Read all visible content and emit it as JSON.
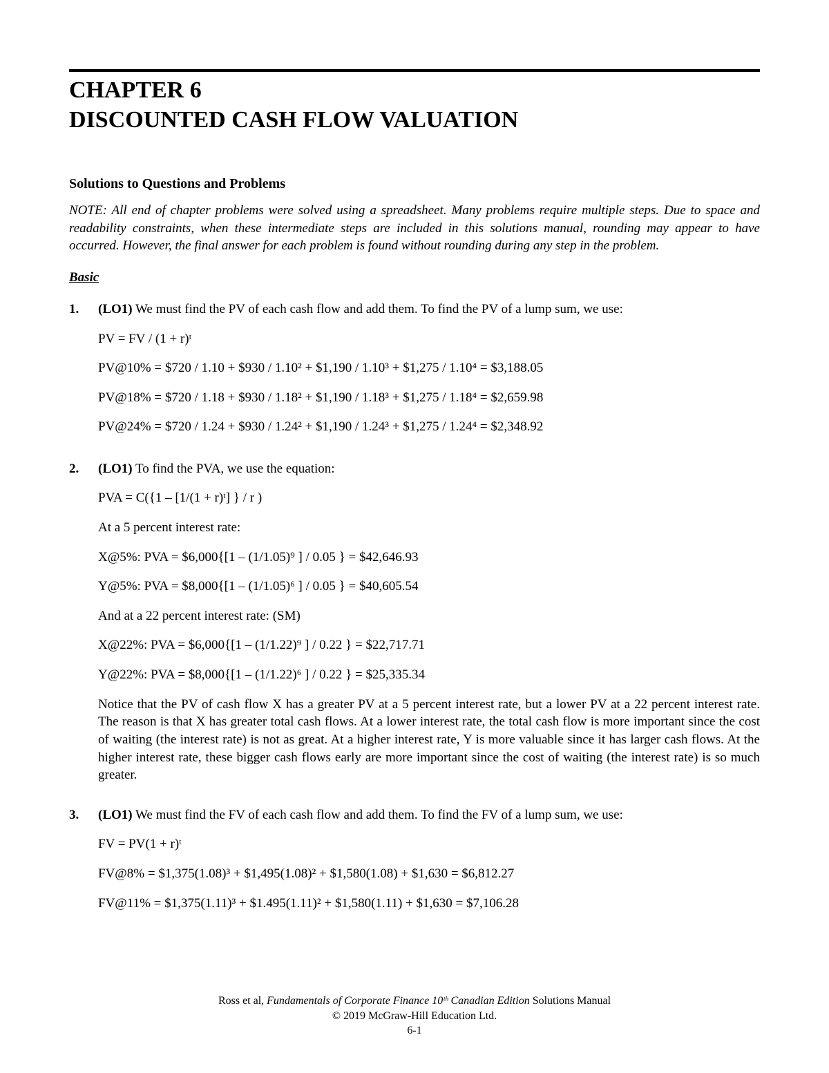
{
  "chapter": {
    "label": "CHAPTER 6",
    "title": "DISCOUNTED CASH FLOW VALUATION"
  },
  "section_heading": "Solutions to Questions and Problems",
  "note": "NOTE: All end of chapter problems were solved using a spreadsheet. Many problems require multiple steps. Due to space and readability constraints, when these intermediate steps are included in this solutions manual, rounding may appear to have occurred. However, the final answer for each problem is found without rounding during any step in the problem.",
  "basic_label": "Basic",
  "problems": [
    {
      "num": "1.",
      "lo": "(LO1)",
      "intro": " We must find the PV of each cash flow and add them. To find the PV of a lump sum, we use:",
      "lines": [
        "PV = FV / (1 + r)ᵗ",
        "PV@10% = $720 / 1.10 + $930 / 1.10² + $1,190 / 1.10³ + $1,275 / 1.10⁴ = $3,188.05",
        "PV@18% = $720 / 1.18 + $930 / 1.18² + $1,190 / 1.18³ + $1,275 / 1.18⁴ = $2,659.98",
        "PV@24% = $720 / 1.24 + $930 / 1.24² + $1,190 / 1.24³ + $1,275 / 1.24⁴ = $2,348.92"
      ]
    },
    {
      "num": "2.",
      "lo": "(LO1)",
      "intro": " To find the PVA, we use the equation:",
      "lines": [
        "PVA = C({1 – [1/(1 + r)ᵗ] } / r )",
        "At a 5 percent interest rate:",
        "X@5%:    PVA = $6,000{[1 – (1/1.05)⁹ ] / 0.05 } = $42,646.93",
        "Y@5%:    PVA = $8,000{[1 – (1/1.05)⁶ ] / 0.05 } = $40,605.54",
        "And at a 22 percent interest rate: (SM)",
        "X@22%:  PVA = $6,000{[1 – (1/1.22)⁹ ] / 0.22 } = $22,717.71",
        "Y@22%:  PVA = $8,000{[1 – (1/1.22)⁶ ] / 0.22 } = $25,335.34"
      ],
      "explain": "Notice that the PV of cash flow X has a greater PV at a 5 percent interest rate, but a lower PV at a 22 percent interest rate. The reason is that X has greater total cash flows. At a lower interest rate, the total cash flow is more important since the cost of waiting (the interest rate) is not as great. At a higher interest rate, Y is more valuable since it has larger cash flows. At the higher interest rate, these bigger cash flows early are more important since the cost of waiting (the interest rate) is so much greater."
    },
    {
      "num": "3.",
      "lo": "(LO1)",
      "intro": " We must find the FV of each cash flow and add them. To find the FV of a lump sum, we use:",
      "lines": [
        "FV = PV(1 + r)ᵗ",
        "FV@8%    = $1,375(1.08)³ + $1,495(1.08)² + $1,580(1.08) + $1,630 = $6,812.27",
        "FV@11%  = $1,375(1.11)³ + $1.495(1.11)² + $1,580(1.11) + $1,630 = $7,106.28"
      ]
    }
  ],
  "footer": {
    "line1_prefix": "Ross et al, ",
    "book": "Fundamentals of Corporate Finance 10ᵗʰ Canadian Edition",
    "line1_suffix": " Solutions Manual",
    "copyright": "© 2019 McGraw-Hill Education Ltd.",
    "page": "6-1"
  }
}
